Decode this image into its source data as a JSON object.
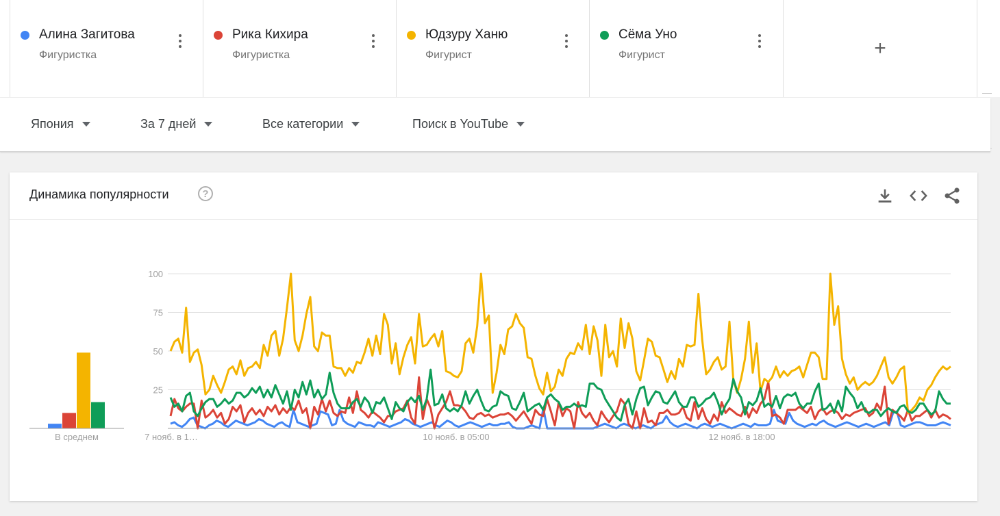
{
  "terms": [
    {
      "name": "Алина Загитова",
      "subtitle": "Фигуристка",
      "color": "#4285f4"
    },
    {
      "name": "Рика Кихира",
      "subtitle": "Фигуристка",
      "color": "#db4437"
    },
    {
      "name": "Юдзуру Ханю",
      "subtitle": "Фигурист",
      "color": "#f4b400"
    },
    {
      "name": "Сёма Уно",
      "subtitle": "Фигурист",
      "color": "#0f9d58"
    }
  ],
  "add_term_icon": "plus-icon",
  "filters": {
    "region": "Япония",
    "period": "За 7 дней",
    "category": "Все категории",
    "search_type": "Поиск в YouTube"
  },
  "card": {
    "title": "Динамика популярности",
    "help_symbol": "?",
    "icons": [
      "download-icon",
      "embed-code-icon",
      "share-icon"
    ]
  },
  "chart_data": {
    "type": "line",
    "ylim": [
      0,
      100
    ],
    "y_ticks": [
      "100",
      "75",
      "50",
      "25"
    ],
    "x_tick_labels": [
      "7 нояб. в 1…",
      "10 нояб. в 05:00",
      "12 нояб. в 18:00"
    ],
    "average_label": "В среднем",
    "averages": [
      {
        "term": "Алина Загитова",
        "value": 3
      },
      {
        "term": "Рика Кихира",
        "value": 10
      },
      {
        "term": "Юдзуру Ханю",
        "value": 49
      },
      {
        "term": "Сёма Уно",
        "value": 17
      }
    ],
    "series": [
      {
        "name": "Алина Загитова",
        "color": "#4285f4",
        "values": [
          3,
          4,
          2,
          1,
          3,
          6,
          7,
          2,
          1,
          0,
          2,
          3,
          5,
          4,
          2,
          1,
          3,
          5,
          4,
          3,
          2,
          3,
          4,
          6,
          5,
          3,
          2,
          1,
          3,
          4,
          2,
          1,
          12,
          4,
          3,
          2,
          1,
          2,
          3,
          11,
          10,
          9,
          2,
          3,
          12,
          5,
          3,
          2,
          1,
          4,
          3,
          2,
          2,
          1,
          4,
          3,
          2,
          1,
          2,
          3,
          4,
          6,
          5,
          3,
          2,
          1,
          2,
          3,
          4,
          2,
          1,
          3,
          5,
          4,
          2,
          1,
          2,
          3,
          4,
          3,
          2,
          1,
          2,
          3,
          2,
          2,
          3,
          3,
          4,
          1,
          0,
          0,
          0,
          1,
          2,
          1,
          0,
          13,
          0,
          0,
          0,
          0,
          0,
          0,
          0,
          0,
          0,
          0,
          0,
          0,
          0,
          1,
          2,
          3,
          2,
          1,
          0,
          2,
          3,
          2,
          1,
          0,
          1,
          2,
          1,
          0,
          2,
          3,
          4,
          8,
          4,
          2,
          1,
          2,
          3,
          2,
          1,
          0,
          2,
          3,
          2,
          1,
          2,
          3,
          2,
          1,
          0,
          1,
          2,
          3,
          2,
          1,
          3,
          2,
          2,
          2,
          3,
          12,
          5,
          4,
          3,
          10,
          5,
          3,
          2,
          1,
          2,
          3,
          2,
          4,
          5,
          3,
          2,
          1,
          2,
          3,
          4,
          3,
          2,
          1,
          2,
          3,
          2,
          1,
          2,
          3,
          4,
          2,
          10,
          11,
          2,
          1,
          2,
          3,
          4,
          4,
          3,
          2,
          2,
          2,
          3,
          4,
          3,
          2
        ]
      },
      {
        "name": "Рика Кихира",
        "color": "#db4437",
        "values": [
          8,
          19,
          13,
          11,
          14,
          16,
          16,
          0,
          18,
          7,
          9,
          12,
          7,
          10,
          3,
          6,
          14,
          11,
          15,
          4,
          10,
          13,
          9,
          12,
          8,
          14,
          11,
          15,
          9,
          13,
          10,
          14,
          12,
          18,
          10,
          13,
          0,
          14,
          9,
          19,
          11,
          18,
          10,
          8,
          11,
          10,
          20,
          10,
          24,
          12,
          10,
          7,
          11,
          9,
          7,
          4,
          8,
          8,
          11,
          12,
          13,
          18,
          7,
          3,
          33,
          6,
          19,
          13,
          0,
          9,
          13,
          17,
          24,
          15,
          15,
          14,
          11,
          7,
          6,
          9,
          10,
          8,
          9,
          7,
          8,
          9,
          9,
          10,
          8,
          5,
          8,
          11,
          7,
          3,
          12,
          9,
          8,
          19,
          11,
          2,
          17,
          8,
          13,
          11,
          0,
          17,
          10,
          7,
          10,
          5,
          2,
          11,
          7,
          4,
          8,
          11,
          19,
          16,
          3,
          0,
          11,
          0,
          13,
          4,
          5,
          2,
          10,
          10,
          12,
          9,
          9,
          10,
          14,
          7,
          5,
          17,
          6,
          13,
          6,
          3,
          9,
          5,
          17,
          10,
          13,
          11,
          9,
          8,
          14,
          7,
          13,
          10,
          16,
          19,
          30,
          8,
          9,
          7,
          3,
          12,
          12,
          12,
          14,
          12,
          10,
          14,
          6,
          11,
          13,
          9,
          11,
          12,
          10,
          6,
          9,
          8,
          10,
          11,
          12,
          13,
          8,
          10,
          16,
          12,
          27,
          3,
          12,
          10,
          8,
          5,
          12,
          5,
          8,
          8,
          10,
          12,
          7,
          12,
          7,
          9,
          8,
          6
        ]
      },
      {
        "name": "Юдзуру Ханю",
        "color": "#f4b400",
        "values": [
          50,
          56,
          58,
          49,
          78,
          43,
          49,
          51,
          41,
          22,
          25,
          34,
          28,
          23,
          30,
          38,
          40,
          35,
          44,
          34,
          39,
          40,
          43,
          39,
          54,
          47,
          60,
          63,
          47,
          58,
          78,
          100,
          57,
          50,
          60,
          74,
          85,
          53,
          50,
          62,
          60,
          60,
          40,
          39,
          39,
          34,
          39,
          36,
          43,
          42,
          49,
          58,
          47,
          60,
          48,
          74,
          67,
          42,
          55,
          35,
          46,
          54,
          59,
          42,
          74,
          53,
          54,
          58,
          61,
          53,
          63,
          37,
          36,
          34,
          33,
          37,
          55,
          58,
          49,
          66,
          100,
          68,
          73,
          23,
          36,
          54,
          48,
          64,
          66,
          74,
          68,
          65,
          46,
          45,
          34,
          26,
          22,
          36,
          24,
          27,
          38,
          34,
          45,
          49,
          48,
          55,
          51,
          67,
          48,
          66,
          57,
          34,
          67,
          46,
          50,
          40,
          71,
          52,
          68,
          58,
          37,
          31,
          44,
          58,
          56,
          47,
          46,
          38,
          30,
          37,
          32,
          45,
          40,
          54,
          53,
          54,
          87,
          57,
          35,
          38,
          43,
          46,
          38,
          40,
          69,
          31,
          23,
          32,
          45,
          69,
          36,
          55,
          24,
          32,
          30,
          33,
          40,
          33,
          37,
          34,
          37,
          38,
          40,
          33,
          41,
          49,
          49,
          46,
          32,
          32,
          100,
          67,
          79,
          45,
          35,
          29,
          33,
          25,
          28,
          30,
          28,
          30,
          34,
          40,
          46,
          33,
          29,
          33,
          38,
          40,
          10,
          12,
          15,
          20,
          18,
          25,
          28,
          33,
          37,
          40,
          38,
          40
        ]
      },
      {
        "name": "Сёма Уно",
        "color": "#0f9d58",
        "values": [
          20,
          14,
          16,
          11,
          21,
          23,
          11,
          8,
          13,
          17,
          19,
          19,
          14,
          16,
          19,
          16,
          18,
          23,
          23,
          20,
          22,
          26,
          23,
          27,
          20,
          25,
          20,
          28,
          22,
          16,
          24,
          12,
          25,
          20,
          30,
          22,
          31,
          20,
          25,
          19,
          22,
          36,
          23,
          16,
          13,
          13,
          13,
          17,
          19,
          14,
          20,
          17,
          10,
          17,
          16,
          20,
          13,
          6,
          17,
          13,
          11,
          17,
          20,
          17,
          21,
          12,
          19,
          38,
          15,
          16,
          22,
          13,
          11,
          13,
          11,
          15,
          24,
          16,
          21,
          25,
          18,
          12,
          11,
          14,
          15,
          24,
          22,
          21,
          13,
          12,
          17,
          23,
          11,
          13,
          15,
          16,
          12,
          20,
          22,
          19,
          17,
          12,
          14,
          14,
          16,
          14,
          15,
          14,
          29,
          29,
          26,
          25,
          19,
          15,
          11,
          7,
          5,
          15,
          19,
          9,
          19,
          26,
          27,
          15,
          20,
          24,
          23,
          17,
          16,
          20,
          24,
          17,
          14,
          14,
          20,
          20,
          14,
          16,
          19,
          20,
          23,
          17,
          9,
          15,
          19,
          32,
          24,
          20,
          9,
          17,
          15,
          18,
          26,
          14,
          16,
          14,
          21,
          13,
          20,
          22,
          21,
          23,
          16,
          13,
          16,
          16,
          24,
          29,
          12,
          13,
          16,
          10,
          18,
          11,
          27,
          23,
          20,
          13,
          17,
          11,
          10,
          12,
          12,
          8,
          11,
          13,
          11,
          10,
          14,
          15,
          11,
          10,
          12,
          16,
          16,
          12,
          9,
          11,
          24,
          19,
          16,
          16
        ]
      }
    ]
  }
}
